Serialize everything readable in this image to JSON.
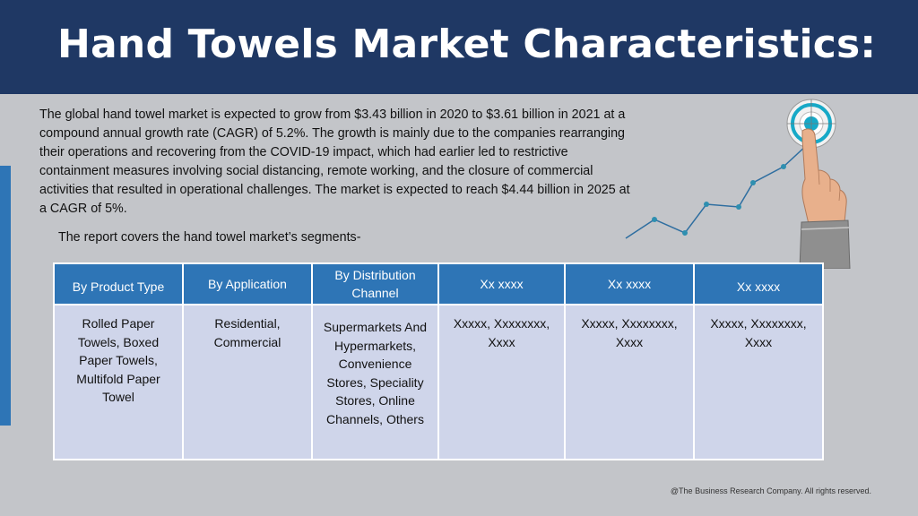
{
  "slide": {
    "title": "Hand Towels Market Characteristics:",
    "intro": "The global hand towel market is expected to grow from $3.43 billion in 2020 to $3.61 billion in 2021 at a compound annual growth rate (CAGR) of 5.2%. The growth is mainly due to the companies rearranging their operations and recovering from the COVID-19 impact, which had earlier led to restrictive containment measures involving social distancing, remote working, and the closure of commercial activities that resulted in operational challenges. The market is expected to reach $4.44 billion in 2025 at a CAGR of 5%.",
    "segments_note": "The report covers the hand towel market’s segments-",
    "footer": "@The Business Research Company. All rights reserved."
  },
  "graphic": {
    "icon": "hand-pointing-target-icon",
    "accent": "#17a9c7"
  },
  "table": {
    "headers": [
      "By Product Type",
      "By Application",
      "By Distribution Channel",
      "Xx xxxx",
      "Xx xxxx",
      "Xx xxxx"
    ],
    "cells": [
      "Rolled Paper Towels, Boxed Paper Towels, Multifold Paper Towel",
      "Residential, Commercial",
      "Supermarkets And Hypermarkets, Convenience Stores, Speciality Stores, Online Channels, Others",
      "Xxxxx, Xxxxxxxx, Xxxx",
      "Xxxxx, Xxxxxxxx, Xxxx",
      "Xxxxx, Xxxxxxxx, Xxxx"
    ],
    "colors": {
      "header": "#2e75b6",
      "cell": "#cfd5ea"
    }
  }
}
